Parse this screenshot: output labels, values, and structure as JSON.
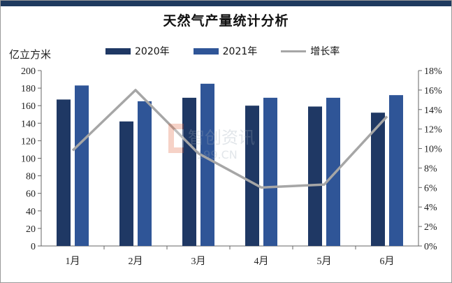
{
  "chart_data": {
    "type": "bar",
    "title": "天然气产量统计分析",
    "ylabel": "亿立方米",
    "categories": [
      "1月",
      "2月",
      "3月",
      "4月",
      "5月",
      "6月"
    ],
    "series": [
      {
        "name": "2020年",
        "kind": "bar",
        "color": "#1f3864",
        "values": [
          167,
          142,
          169,
          160,
          159,
          152
        ]
      },
      {
        "name": "2021年",
        "kind": "bar",
        "color": "#2f5597",
        "values": [
          183,
          165,
          185,
          169,
          169,
          172
        ]
      },
      {
        "name": "增长率",
        "kind": "line",
        "axis": "right",
        "color": "#a6a6a6",
        "values": [
          9.8,
          16.0,
          9.5,
          6.0,
          6.3,
          13.3
        ]
      }
    ],
    "ylim": [
      0,
      200
    ],
    "y_ticks": [
      "0",
      "20",
      "40",
      "60",
      "80",
      "100",
      "120",
      "140",
      "160",
      "180",
      "200"
    ],
    "y2lim": [
      0,
      18
    ],
    "y2_ticks": [
      "0%",
      "2%",
      "4%",
      "6%",
      "8%",
      "10%",
      "12%",
      "14%",
      "16%",
      "18%"
    ],
    "grid": false,
    "legend_position": "top"
  },
  "watermark": {
    "line1": "智创资讯",
    "line2": "199.CN"
  }
}
